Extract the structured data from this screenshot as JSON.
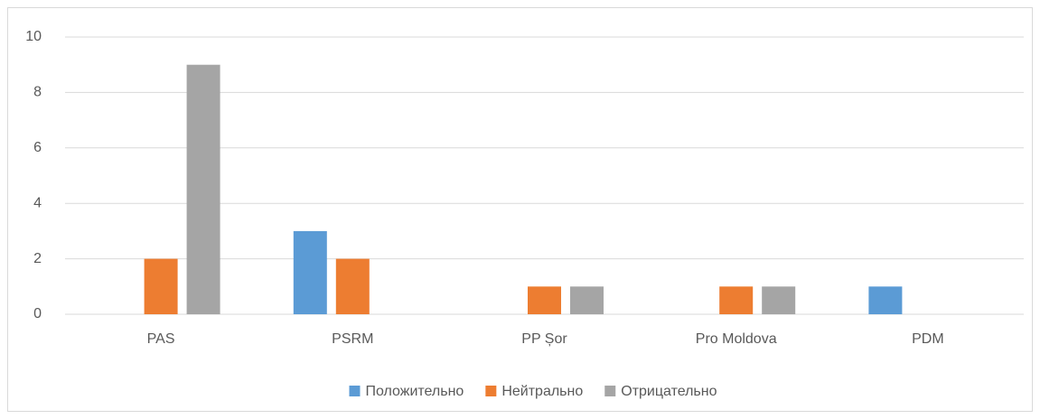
{
  "chart_data": {
    "type": "bar",
    "categories": [
      "PAS",
      "PSRM",
      "PP Șor",
      "Pro Moldova",
      "PDM"
    ],
    "series": [
      {
        "name": "Положительно",
        "color": "#5b9bd5",
        "values": [
          0,
          3,
          0,
          0,
          1
        ]
      },
      {
        "name": "Нейтрально",
        "color": "#ed7d31",
        "values": [
          2,
          2,
          1,
          1,
          0
        ]
      },
      {
        "name": "Отрицательно",
        "color": "#a5a5a5",
        "values": [
          9,
          0,
          1,
          1,
          0
        ]
      }
    ],
    "ylim": [
      0,
      10
    ],
    "yticks": [
      0,
      2,
      4,
      6,
      8,
      10
    ],
    "grid": true,
    "legend": "bottom"
  }
}
